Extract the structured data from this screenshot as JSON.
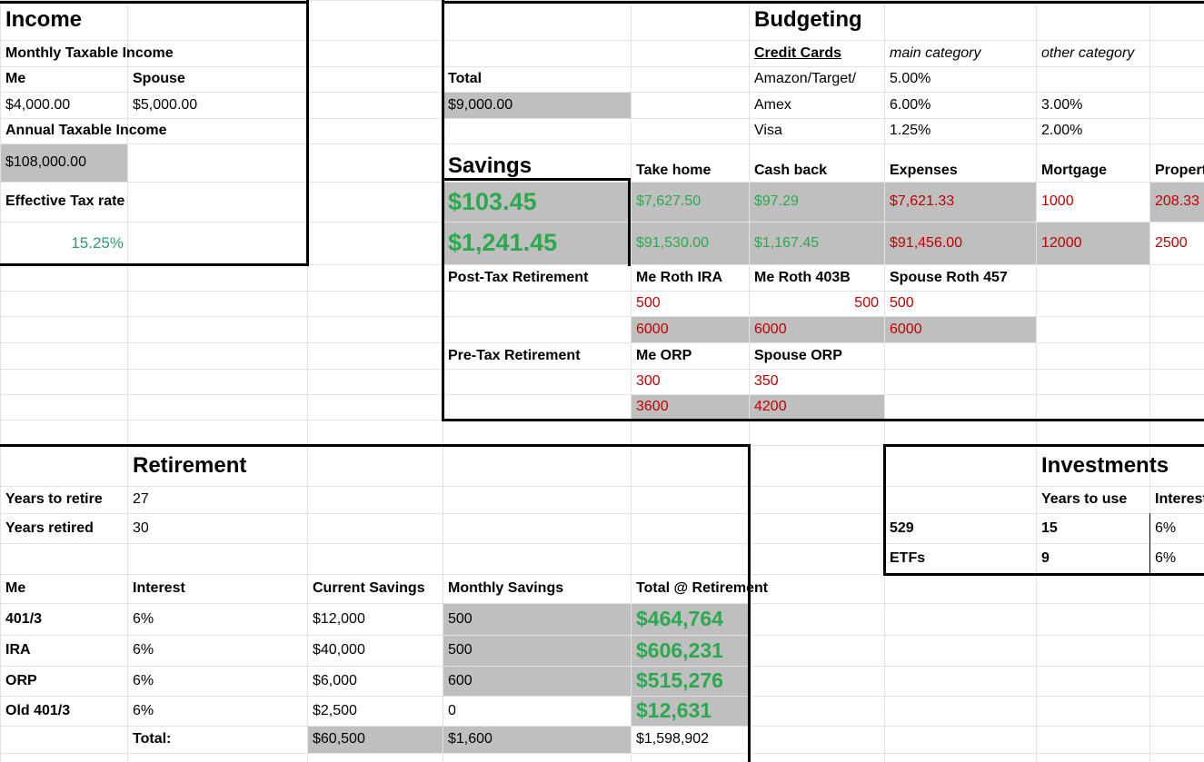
{
  "income": {
    "title": "Income",
    "monthly_label": "Monthly Taxable Income",
    "me_label": "Me",
    "spouse_label": "Spouse",
    "me_monthly": "$4,000.00",
    "spouse_monthly": "$5,000.00",
    "annual_label": "Annual Taxable Income",
    "annual": "$108,000.00",
    "tax_rate_label": "Effective Tax rate",
    "tax_rate": "15.25%"
  },
  "budgeting": {
    "title": "Budgeting",
    "total_label": "Total",
    "total": "$9,000.00",
    "credit_cards": {
      "header": "Credit Cards",
      "main_header": "main category",
      "other_header": "other category",
      "rows": [
        {
          "card": "Amazon/Target/",
          "main": "5.00%"
        },
        {
          "card": "Amex",
          "main": "6.00%",
          "other": "3.00%"
        },
        {
          "card": "Visa",
          "main": "1.25%",
          "other": "2.00%"
        }
      ]
    },
    "savings": {
      "title": "Savings",
      "headers": [
        "Take home",
        "Cash back",
        "Expenses",
        "Mortgage",
        "Property"
      ],
      "monthly": "$103.45",
      "monthly_values": [
        "$7,627.50",
        "$97.29",
        "$7,621.33",
        "1000",
        "208.33"
      ],
      "annual": "$1,241.45",
      "annual_values": [
        "$91,530.00",
        "$1,167.45",
        "$91,456.00",
        "12000",
        "2500"
      ]
    },
    "post_tax": {
      "label": "Post-Tax Retirement",
      "headers": [
        "Me Roth IRA",
        "Me Roth 403B",
        "Spouse Roth 457"
      ],
      "monthly": [
        "500",
        "500",
        "500"
      ],
      "annual": [
        "6000",
        "6000",
        "6000"
      ]
    },
    "pre_tax": {
      "label": "Pre-Tax Retirement",
      "headers": [
        "Me ORP",
        "Spouse ORP"
      ],
      "monthly": [
        "300",
        "350"
      ],
      "annual": [
        "3600",
        "4200"
      ]
    }
  },
  "retirement": {
    "title": "Retirement",
    "years_to_retire_label": "Years to retire",
    "years_to_retire": "27",
    "years_retired_label": "Years retired",
    "years_retired": "30",
    "header": [
      "Me",
      "Interest",
      "Current Savings",
      "Monthly Savings",
      "Total @ Retirement"
    ],
    "rows": [
      [
        "401/3",
        "6%",
        "$12,000",
        "500",
        "$464,764"
      ],
      [
        "IRA",
        "6%",
        "$40,000",
        "500",
        "$606,231"
      ],
      [
        "ORP",
        "6%",
        "$6,000",
        "600",
        "$515,276"
      ],
      [
        "Old 401/3",
        "6%",
        "$2,500",
        "0",
        "$12,631"
      ]
    ],
    "total_label": "Total:",
    "total_current": "$60,500",
    "total_monthly": "$1,600",
    "total_retirement": "$1,598,902"
  },
  "investments": {
    "title": "Investments",
    "headers": [
      "Years to use",
      "Interest"
    ],
    "rows": [
      [
        "529",
        "15",
        "6%"
      ],
      [
        "ETFs",
        "9",
        "6%"
      ]
    ]
  }
}
